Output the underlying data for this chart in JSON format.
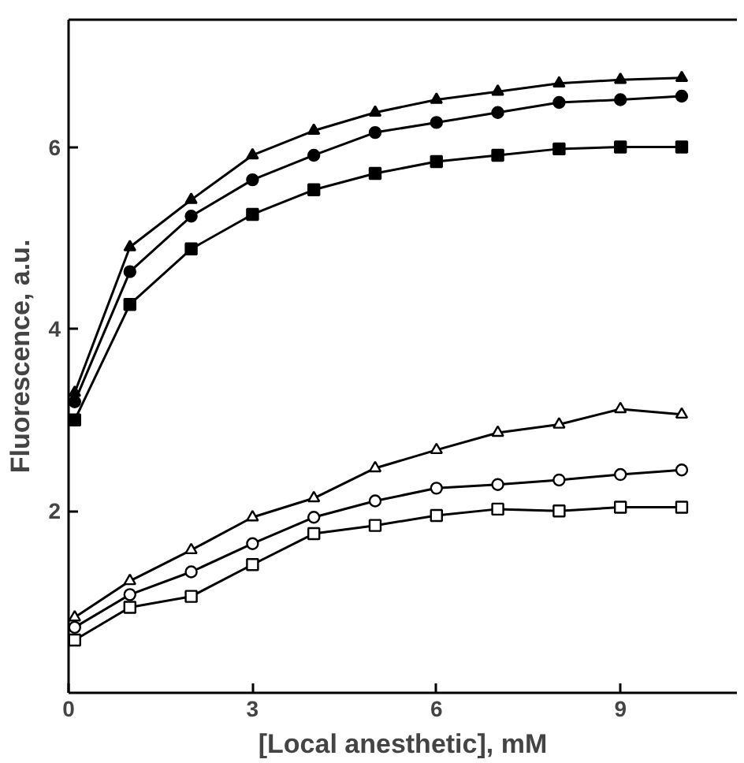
{
  "chart_data": {
    "type": "line",
    "xlabel": "[Local anesthetic], mM",
    "ylabel": "Fluorescence, a.u.",
    "xlim": [
      0,
      10.9
    ],
    "ylim": [
      0,
      7.4
    ],
    "xticks": [
      0,
      3,
      6,
      9
    ],
    "yticks": [
      2,
      4,
      6
    ],
    "grid": false,
    "line_style": "solid",
    "x": [
      0.1,
      1,
      2,
      3,
      4,
      5,
      6,
      7,
      8,
      9,
      10
    ],
    "series": [
      {
        "color": "#000000",
        "marker": "triangle",
        "values": [
          3.3,
          4.9,
          5.42,
          5.91,
          6.18,
          6.38,
          6.52,
          6.61,
          6.7,
          6.74,
          6.76
        ]
      },
      {
        "color": "#000000",
        "marker": "circle",
        "values": [
          3.2,
          4.63,
          5.24,
          5.64,
          5.91,
          6.16,
          6.27,
          6.38,
          6.49,
          6.52,
          6.56
        ]
      },
      {
        "color": "#000000",
        "marker": "square",
        "values": [
          3.0,
          4.27,
          4.88,
          5.26,
          5.53,
          5.71,
          5.84,
          5.91,
          5.98,
          6.0,
          6.0
        ]
      },
      {
        "color": "#000000",
        "marker": "triangle_open",
        "values": [
          0.83,
          1.23,
          1.57,
          1.93,
          2.14,
          2.47,
          2.67,
          2.86,
          2.95,
          3.12,
          3.06
        ]
      },
      {
        "color": "#000000",
        "marker": "circle_open",
        "values": [
          0.72,
          1.08,
          1.33,
          1.64,
          1.93,
          2.11,
          2.25,
          2.29,
          2.34,
          2.4,
          2.45
        ]
      },
      {
        "color": "#000000",
        "marker": "square_open",
        "values": [
          0.58,
          0.94,
          1.06,
          1.41,
          1.75,
          1.84,
          1.95,
          2.02,
          2.0,
          2.04,
          2.04
        ]
      }
    ]
  }
}
